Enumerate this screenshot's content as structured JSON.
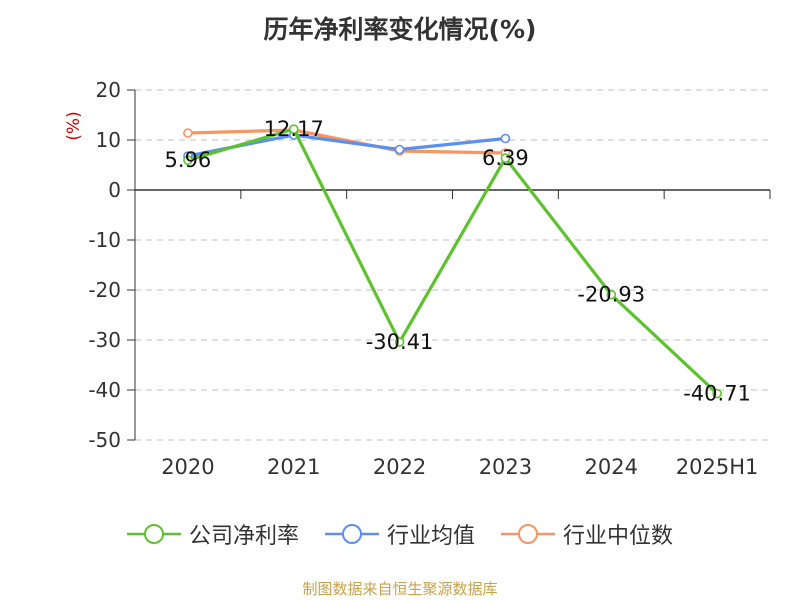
{
  "title": "历年净利率变化情况(%)",
  "source": "制图数据来自恒生聚源数据库",
  "chart_data": {
    "type": "line",
    "title": "历年净利率变化情况(%)",
    "ylabel": "(%)",
    "ylim": [
      -50,
      20
    ],
    "yticks": [
      20,
      10,
      0,
      -10,
      -20,
      -30,
      -40,
      -50
    ],
    "categories": [
      "2020",
      "2021",
      "2022",
      "2023",
      "2024",
      "2025H1"
    ],
    "grid": true,
    "legend_position": "bottom",
    "series": [
      {
        "name": "公司净利率",
        "color": "#5ec22f",
        "values": [
          5.96,
          12.17,
          -30.41,
          6.39,
          -20.93,
          -40.71
        ],
        "labels": [
          "5.96",
          "12.17",
          "-30.41",
          "6.39",
          "-20.93",
          "-40.71"
        ]
      },
      {
        "name": "行业均值",
        "color": "#5b8ff0",
        "values": [
          6.8,
          11.0,
          8.1,
          10.3,
          null,
          null
        ]
      },
      {
        "name": "行业中位数",
        "color": "#f59663",
        "values": [
          11.4,
          12.0,
          7.8,
          7.4,
          null,
          null
        ]
      }
    ]
  }
}
